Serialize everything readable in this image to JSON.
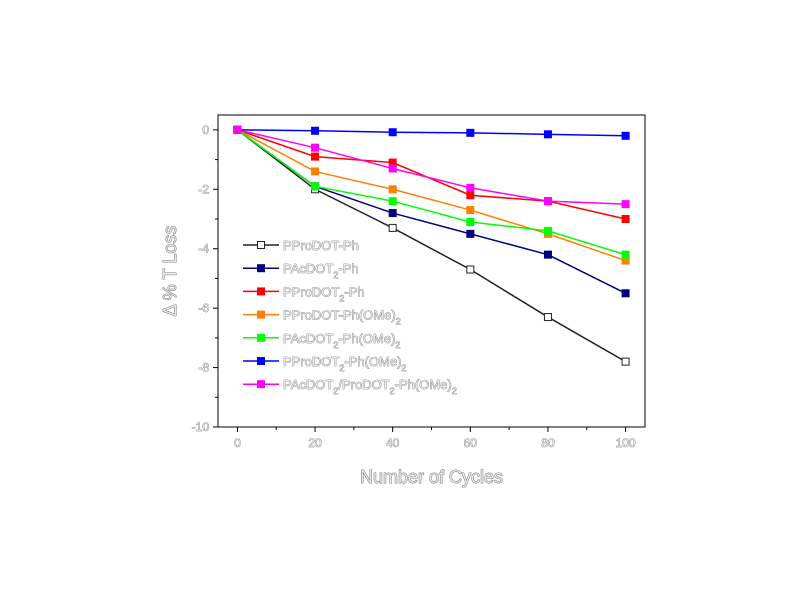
{
  "chart_data": {
    "type": "line",
    "xlabel": "Number of Cycles",
    "ylabel": "Δ % T Loss",
    "xlim": [
      -5,
      105
    ],
    "ylim": [
      -10,
      0.5
    ],
    "xticks": [
      0,
      20,
      40,
      60,
      80,
      100
    ],
    "yticks": [
      0,
      -2,
      -4,
      -6,
      -8,
      -10
    ],
    "x": [
      0,
      20,
      40,
      60,
      80,
      100
    ],
    "legend_position": "left-center",
    "grid": false,
    "series": [
      {
        "name": "PProDOT-Ph",
        "name_parts": [
          [
            "PProDOT-Ph",
            ""
          ]
        ],
        "color": "#222222",
        "marker": "open-square",
        "values": [
          0,
          -2.0,
          -3.3,
          -4.7,
          -6.3,
          -7.8
        ]
      },
      {
        "name": "PAcDOT2-Ph",
        "name_parts": [
          [
            "PAcDOT",
            ""
          ],
          [
            "2",
            "sub"
          ],
          [
            "-Ph",
            ""
          ]
        ],
        "color": "#000080",
        "marker": "square",
        "values": [
          0,
          -1.9,
          -2.8,
          -3.5,
          -4.2,
          -5.5
        ]
      },
      {
        "name": "PProDOT2-Ph",
        "name_parts": [
          [
            "PProDOT",
            ""
          ],
          [
            "2",
            "sub"
          ],
          [
            "-Ph",
            ""
          ]
        ],
        "color": "#ff0000",
        "marker": "square",
        "values": [
          0,
          -0.9,
          -1.1,
          -2.2,
          -2.4,
          -3.0
        ]
      },
      {
        "name": "PProDOT-Ph(OMe)2",
        "name_parts": [
          [
            "PProDOT-Ph(OMe)",
            ""
          ],
          [
            "2",
            "sub"
          ]
        ],
        "color": "#ff8000",
        "marker": "square",
        "values": [
          0,
          -1.4,
          -2.0,
          -2.7,
          -3.5,
          -4.4
        ]
      },
      {
        "name": "PAcDOT2-Ph(OMe)2",
        "name_parts": [
          [
            "PAcDOT",
            ""
          ],
          [
            "2",
            "sub"
          ],
          [
            "-Ph(OMe)",
            ""
          ],
          [
            "2",
            "sub"
          ]
        ],
        "color": "#00ff00",
        "marker": "square",
        "values": [
          0,
          -1.9,
          -2.4,
          -3.1,
          -3.4,
          -4.2
        ]
      },
      {
        "name": "PProDOT2-Ph(OMe)2",
        "name_parts": [
          [
            "PProDOT",
            ""
          ],
          [
            "2",
            "sub"
          ],
          [
            "-Ph(OMe)",
            ""
          ],
          [
            "2",
            "sub"
          ]
        ],
        "color": "#0000ff",
        "marker": "square",
        "values": [
          0,
          -0.03,
          -0.08,
          -0.1,
          -0.15,
          -0.2
        ]
      },
      {
        "name": "PAcDOT2/ProDOT2-Ph(OMe)2",
        "name_parts": [
          [
            "PAcDOT",
            ""
          ],
          [
            "2",
            "sub"
          ],
          [
            "/ProDOT",
            ""
          ],
          [
            "2",
            "sub"
          ],
          [
            "-Ph(OMe)",
            ""
          ],
          [
            "2",
            "sub"
          ]
        ],
        "color": "#ff00ff",
        "marker": "square",
        "values": [
          0,
          -0.6,
          -1.3,
          -1.95,
          -2.4,
          -2.5
        ]
      }
    ]
  }
}
